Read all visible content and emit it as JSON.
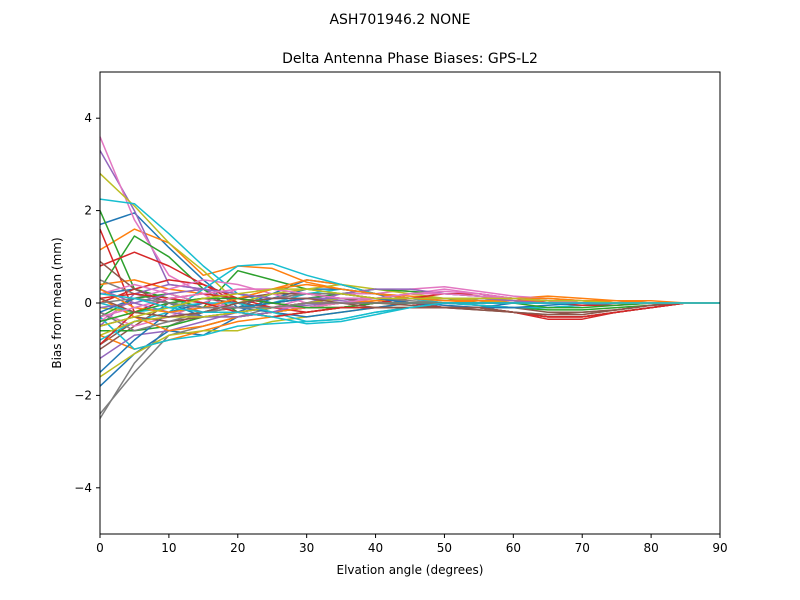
{
  "chart_data": {
    "type": "line",
    "suptitle": "ASH701946.2      NONE",
    "title": "Delta Antenna Phase Biases: GPS-L2",
    "xlabel": "Elvation angle (degrees)",
    "ylabel": "Bias from mean (mm)",
    "xlim": [
      0,
      90
    ],
    "ylim": [
      -5,
      5
    ],
    "xticks": [
      "0",
      "10",
      "20",
      "30",
      "40",
      "50",
      "60",
      "70",
      "80",
      "90"
    ],
    "yticks": [
      "−4",
      "−2",
      "0",
      "2",
      "4"
    ],
    "grid": false,
    "legend": "none",
    "x": [
      0,
      5,
      10,
      15,
      20,
      25,
      30,
      35,
      40,
      45,
      50,
      55,
      60,
      65,
      70,
      75,
      80,
      85,
      90
    ],
    "series": [
      {
        "color": "#1f77b4",
        "values": [
          1.7,
          1.95,
          1.2,
          0.5,
          -0.1,
          0.2,
          0.5,
          0.4,
          0.2,
          0.0,
          -0.1,
          -0.1,
          0.0,
          0.05,
          0.05,
          0.05,
          0.0,
          0.0,
          0.0
        ]
      },
      {
        "color": "#ff7f0e",
        "values": [
          1.15,
          1.6,
          1.3,
          0.6,
          0.8,
          0.75,
          0.45,
          0.3,
          0.2,
          0.15,
          0.1,
          0.1,
          0.1,
          0.15,
          0.1,
          0.05,
          0.05,
          0.0,
          0.0
        ]
      },
      {
        "color": "#2ca02c",
        "values": [
          2.0,
          0.3,
          0.1,
          -0.1,
          0.7,
          0.5,
          0.3,
          0.2,
          0.1,
          0.1,
          0.1,
          0.0,
          0.0,
          0.0,
          0.0,
          0.0,
          0.0,
          0.0,
          0.0
        ]
      },
      {
        "color": "#d62728",
        "values": [
          1.6,
          -0.2,
          -0.3,
          -0.2,
          0.0,
          0.1,
          0.2,
          0.2,
          0.1,
          0.0,
          -0.1,
          -0.1,
          -0.2,
          -0.35,
          -0.35,
          -0.2,
          -0.1,
          0.0,
          0.0
        ]
      },
      {
        "color": "#9467bd",
        "values": [
          3.3,
          2.0,
          0.4,
          0.3,
          0.0,
          -0.2,
          0.0,
          0.1,
          0.1,
          0.1,
          0.1,
          0.1,
          0.05,
          0.0,
          0.0,
          0.0,
          0.0,
          0.0,
          0.0
        ]
      },
      {
        "color": "#8c564b",
        "values": [
          -0.9,
          -0.4,
          -0.3,
          -0.2,
          -0.1,
          0.0,
          0.1,
          0.1,
          0.0,
          0.0,
          -0.1,
          -0.1,
          -0.2,
          -0.3,
          -0.3,
          -0.2,
          -0.1,
          0.0,
          0.0
        ]
      },
      {
        "color": "#e377c2",
        "values": [
          3.6,
          1.8,
          0.6,
          0.2,
          -0.2,
          -0.1,
          0.1,
          0.2,
          0.2,
          0.3,
          0.35,
          0.25,
          0.15,
          0.1,
          0.05,
          0.0,
          0.0,
          0.0,
          0.0
        ]
      },
      {
        "color": "#7f7f7f",
        "values": [
          -2.5,
          -1.3,
          -0.5,
          -0.2,
          -0.1,
          0.0,
          0.1,
          0.1,
          0.1,
          0.1,
          0.1,
          0.05,
          0.0,
          0.0,
          0.0,
          0.0,
          0.0,
          0.0,
          0.0
        ]
      },
      {
        "color": "#bcbd22",
        "values": [
          2.8,
          2.1,
          1.3,
          0.7,
          0.0,
          -0.2,
          -0.1,
          0.0,
          0.05,
          0.1,
          0.1,
          0.1,
          0.1,
          0.1,
          0.05,
          0.0,
          0.0,
          0.0,
          0.0
        ]
      },
      {
        "color": "#17becf",
        "values": [
          2.25,
          2.15,
          1.5,
          0.8,
          0.2,
          0.0,
          0.2,
          0.3,
          0.2,
          0.1,
          0.1,
          0.05,
          0.05,
          0.0,
          0.0,
          0.0,
          0.0,
          0.0,
          0.0
        ]
      },
      {
        "color": "#1f77b4",
        "values": [
          -1.8,
          -1.1,
          -0.6,
          -0.7,
          -0.3,
          -0.2,
          -0.1,
          0.0,
          0.0,
          0.0,
          0.0,
          0.0,
          0.0,
          0.0,
          0.0,
          0.0,
          0.0,
          0.0,
          0.0
        ]
      },
      {
        "color": "#ff7f0e",
        "values": [
          -0.7,
          -1.0,
          -0.8,
          -0.6,
          -0.4,
          -0.3,
          -0.2,
          -0.1,
          0.0,
          0.0,
          0.0,
          0.05,
          0.05,
          0.05,
          0.0,
          0.0,
          0.0,
          0.0,
          0.0
        ]
      },
      {
        "color": "#2ca02c",
        "values": [
          0.3,
          1.45,
          1.0,
          0.3,
          -0.2,
          -0.3,
          -0.2,
          -0.1,
          0.0,
          0.1,
          0.1,
          0.1,
          0.05,
          0.0,
          0.0,
          0.0,
          0.0,
          0.0,
          0.0
        ]
      },
      {
        "color": "#d62728",
        "values": [
          0.8,
          1.1,
          0.8,
          0.4,
          0.0,
          -0.1,
          0.0,
          0.1,
          0.1,
          0.0,
          -0.1,
          -0.1,
          -0.2,
          -0.3,
          -0.3,
          -0.2,
          -0.1,
          0.0,
          0.0
        ]
      },
      {
        "color": "#9467bd",
        "values": [
          -0.5,
          0.2,
          0.4,
          0.3,
          0.2,
          0.1,
          0.1,
          0.05,
          0.0,
          0.0,
          0.0,
          0.0,
          0.0,
          0.0,
          0.0,
          0.0,
          0.0,
          0.0,
          0.0
        ]
      },
      {
        "color": "#8c564b",
        "values": [
          -1.0,
          -0.5,
          0.0,
          0.1,
          0.0,
          -0.1,
          -0.1,
          -0.1,
          -0.1,
          -0.1,
          -0.1,
          -0.15,
          -0.2,
          -0.25,
          -0.25,
          -0.15,
          -0.05,
          0.0,
          0.0
        ]
      },
      {
        "color": "#e377c2",
        "values": [
          -0.2,
          -0.5,
          -0.3,
          0.0,
          0.3,
          0.3,
          0.2,
          0.1,
          0.1,
          0.2,
          0.2,
          0.15,
          0.1,
          0.0,
          0.0,
          0.0,
          0.0,
          0.0,
          0.0
        ]
      },
      {
        "color": "#7f7f7f",
        "values": [
          -2.4,
          -1.5,
          -0.7,
          -0.5,
          -0.3,
          -0.1,
          0.0,
          0.0,
          0.0,
          0.0,
          0.0,
          0.0,
          0.0,
          0.0,
          0.0,
          0.0,
          0.0,
          0.0,
          0.0
        ]
      },
      {
        "color": "#bcbd22",
        "values": [
          -1.6,
          -1.1,
          -0.7,
          -0.6,
          -0.6,
          -0.4,
          -0.3,
          -0.2,
          -0.1,
          0.0,
          0.0,
          0.0,
          0.0,
          0.0,
          0.0,
          0.0,
          0.0,
          0.0,
          0.0
        ]
      },
      {
        "color": "#17becf",
        "values": [
          -0.3,
          -1.0,
          -0.8,
          -0.7,
          -0.5,
          -0.45,
          -0.4,
          -0.35,
          -0.2,
          -0.1,
          0.0,
          0.0,
          0.0,
          0.0,
          0.0,
          0.0,
          0.0,
          0.0,
          0.0
        ]
      },
      {
        "color": "#1f77b4",
        "values": [
          0.2,
          0.3,
          0.0,
          -0.3,
          -0.2,
          0.1,
          0.3,
          0.3,
          0.2,
          0.1,
          0.0,
          -0.05,
          -0.1,
          -0.1,
          -0.05,
          0.0,
          0.0,
          0.0,
          0.0
        ]
      },
      {
        "color": "#ff7f0e",
        "values": [
          0.4,
          0.5,
          0.3,
          0.2,
          0.1,
          0.3,
          0.5,
          0.4,
          0.2,
          0.1,
          0.1,
          0.1,
          0.1,
          0.05,
          0.05,
          0.0,
          0.0,
          0.0,
          0.0
        ]
      },
      {
        "color": "#2ca02c",
        "values": [
          -0.6,
          -0.6,
          -0.5,
          -0.3,
          -0.3,
          -0.2,
          -0.1,
          -0.1,
          -0.1,
          -0.1,
          -0.1,
          -0.1,
          -0.1,
          -0.15,
          -0.15,
          -0.1,
          -0.05,
          0.0,
          0.0
        ]
      },
      {
        "color": "#d62728",
        "values": [
          0.0,
          0.3,
          0.5,
          0.4,
          0.1,
          -0.1,
          -0.2,
          -0.1,
          0.0,
          0.1,
          0.1,
          0.05,
          0.0,
          0.0,
          0.0,
          0.0,
          0.0,
          0.0,
          0.0
        ]
      },
      {
        "color": "#9467bd",
        "values": [
          -1.2,
          -0.7,
          -0.6,
          -0.4,
          -0.2,
          -0.1,
          -0.05,
          0.0,
          0.0,
          0.0,
          0.0,
          0.0,
          0.0,
          0.0,
          0.0,
          0.0,
          0.0,
          0.0,
          0.0
        ]
      },
      {
        "color": "#8c564b",
        "values": [
          0.9,
          0.3,
          0.0,
          -0.1,
          0.1,
          0.2,
          0.2,
          0.1,
          0.0,
          0.0,
          0.0,
          -0.05,
          -0.1,
          -0.2,
          -0.2,
          -0.15,
          -0.05,
          0.0,
          0.0
        ]
      },
      {
        "color": "#e377c2",
        "values": [
          -0.4,
          0.1,
          0.3,
          0.5,
          0.4,
          0.2,
          0.0,
          0.0,
          0.1,
          0.2,
          0.3,
          0.2,
          0.1,
          0.05,
          0.0,
          0.0,
          0.0,
          0.0,
          0.0
        ]
      },
      {
        "color": "#7f7f7f",
        "values": [
          0.5,
          0.2,
          0.0,
          -0.2,
          -0.2,
          -0.1,
          0.0,
          0.1,
          0.1,
          0.1,
          0.1,
          0.05,
          0.0,
          0.0,
          0.0,
          0.0,
          0.0,
          0.0,
          0.0
        ]
      },
      {
        "color": "#bcbd22",
        "values": [
          -0.1,
          -0.2,
          -0.3,
          -0.2,
          0.0,
          0.2,
          0.3,
          0.4,
          0.3,
          0.2,
          0.1,
          0.05,
          0.0,
          0.0,
          0.0,
          0.0,
          0.0,
          0.0,
          0.0
        ]
      },
      {
        "color": "#17becf",
        "values": [
          -0.8,
          -0.4,
          -0.2,
          0.3,
          0.8,
          0.85,
          0.6,
          0.4,
          0.2,
          0.1,
          0.0,
          -0.05,
          -0.1,
          -0.1,
          -0.05,
          0.0,
          0.0,
          0.0,
          0.0
        ]
      },
      {
        "color": "#1f77b4",
        "values": [
          -1.5,
          -0.8,
          -0.2,
          0.0,
          -0.1,
          -0.2,
          -0.3,
          -0.2,
          -0.1,
          0.0,
          0.0,
          0.0,
          0.0,
          0.0,
          0.0,
          0.0,
          0.0,
          0.0,
          0.0
        ]
      },
      {
        "color": "#ff7f0e",
        "values": [
          0.1,
          -0.3,
          -0.6,
          -0.5,
          -0.3,
          -0.2,
          -0.1,
          0.0,
          0.05,
          0.1,
          0.1,
          0.1,
          0.1,
          0.1,
          0.05,
          0.05,
          0.0,
          0.0,
          0.0
        ]
      },
      {
        "color": "#2ca02c",
        "values": [
          -0.3,
          0.1,
          0.2,
          0.0,
          -0.1,
          0.0,
          0.1,
          0.2,
          0.3,
          0.25,
          0.2,
          0.15,
          0.1,
          0.05,
          0.0,
          0.0,
          0.0,
          0.0,
          0.0
        ]
      },
      {
        "color": "#d62728",
        "values": [
          -0.9,
          -0.2,
          0.1,
          0.2,
          0.1,
          0.0,
          -0.1,
          -0.1,
          0.0,
          0.1,
          0.2,
          0.2,
          0.1,
          0.0,
          -0.05,
          -0.05,
          0.0,
          0.0,
          0.0
        ]
      },
      {
        "color": "#9467bd",
        "values": [
          0.3,
          0.0,
          -0.2,
          -0.3,
          -0.3,
          -0.2,
          0.0,
          0.2,
          0.3,
          0.3,
          0.2,
          0.15,
          0.1,
          0.05,
          0.0,
          0.0,
          0.0,
          0.0,
          0.0
        ]
      },
      {
        "color": "#8c564b",
        "values": [
          -0.5,
          -0.3,
          -0.4,
          -0.3,
          -0.2,
          -0.1,
          0.0,
          0.0,
          0.0,
          -0.05,
          -0.1,
          -0.15,
          -0.2,
          -0.3,
          -0.3,
          -0.2,
          -0.1,
          0.0,
          0.0
        ]
      },
      {
        "color": "#e377c2",
        "values": [
          0.2,
          0.4,
          0.2,
          0.0,
          -0.1,
          -0.1,
          -0.1,
          0.0,
          0.1,
          0.2,
          0.2,
          0.15,
          0.1,
          0.05,
          0.0,
          0.0,
          0.0,
          0.0,
          0.0
        ]
      },
      {
        "color": "#7f7f7f",
        "values": [
          -0.2,
          -0.6,
          -0.4,
          -0.2,
          0.0,
          0.1,
          0.2,
          0.2,
          0.1,
          0.05,
          0.0,
          0.0,
          0.0,
          0.0,
          0.0,
          0.0,
          0.0,
          0.0,
          0.0
        ]
      },
      {
        "color": "#bcbd22",
        "values": [
          -0.7,
          -0.4,
          -0.3,
          -0.3,
          -0.2,
          -0.1,
          0.0,
          0.1,
          0.1,
          0.1,
          0.1,
          0.1,
          0.05,
          0.0,
          0.0,
          0.0,
          0.0,
          0.0,
          0.0
        ]
      },
      {
        "color": "#17becf",
        "values": [
          0.0,
          -0.2,
          -0.1,
          0.0,
          0.0,
          -0.2,
          -0.4,
          -0.35,
          -0.2,
          -0.1,
          0.0,
          0.0,
          0.0,
          0.0,
          0.0,
          0.0,
          0.0,
          0.0,
          0.0
        ]
      },
      {
        "color": "#1f77b4",
        "values": [
          -0.2,
          0.1,
          0.0,
          -0.1,
          -0.1,
          0.0,
          0.1,
          0.1,
          0.1,
          0.0,
          -0.05,
          -0.1,
          -0.1,
          -0.05,
          0.0,
          0.0,
          0.0,
          0.0,
          0.0
        ]
      },
      {
        "color": "#ff7f0e",
        "values": [
          0.3,
          -0.1,
          -0.2,
          -0.1,
          0.1,
          0.3,
          0.4,
          0.3,
          0.2,
          0.1,
          0.05,
          0.05,
          0.05,
          0.05,
          0.05,
          0.0,
          0.0,
          0.0,
          0.0
        ]
      },
      {
        "color": "#2ca02c",
        "values": [
          -0.4,
          -0.2,
          0.0,
          0.1,
          0.1,
          0.0,
          -0.1,
          -0.1,
          0.0,
          0.0,
          0.0,
          0.0,
          0.0,
          -0.1,
          -0.1,
          -0.05,
          0.0,
          0.0,
          0.0
        ]
      },
      {
        "color": "#d62728",
        "values": [
          0.1,
          0.2,
          0.1,
          0.0,
          -0.2,
          -0.3,
          -0.2,
          -0.1,
          -0.1,
          -0.1,
          -0.1,
          -0.1,
          -0.2,
          -0.3,
          -0.3,
          -0.2,
          -0.1,
          0.0,
          0.0
        ]
      },
      {
        "color": "#9467bd",
        "values": [
          -0.1,
          0.0,
          0.2,
          0.3,
          0.2,
          0.1,
          0.1,
          0.1,
          0.1,
          0.1,
          0.1,
          0.1,
          0.05,
          0.0,
          0.0,
          0.0,
          0.0,
          0.0,
          0.0
        ]
      },
      {
        "color": "#8c564b",
        "values": [
          0.1,
          -0.2,
          -0.3,
          -0.2,
          0.0,
          0.1,
          0.1,
          0.0,
          -0.1,
          -0.1,
          -0.1,
          -0.1,
          -0.2,
          -0.25,
          -0.2,
          -0.15,
          -0.05,
          0.0,
          0.0
        ]
      },
      {
        "color": "#e377c2",
        "values": [
          -0.3,
          -0.1,
          0.1,
          0.2,
          0.3,
          0.3,
          0.2,
          0.1,
          0.1,
          0.2,
          0.25,
          0.2,
          0.1,
          0.05,
          0.0,
          0.0,
          0.0,
          0.0,
          0.0
        ]
      },
      {
        "color": "#7f7f7f",
        "values": [
          0.0,
          0.1,
          0.0,
          -0.1,
          -0.1,
          -0.1,
          0.0,
          0.0,
          0.0,
          0.0,
          0.0,
          0.0,
          0.0,
          0.0,
          0.0,
          0.0,
          0.0,
          0.0,
          0.0
        ]
      },
      {
        "color": "#bcbd22",
        "values": [
          -0.5,
          -0.3,
          -0.1,
          0.1,
          0.2,
          0.3,
          0.3,
          0.2,
          0.1,
          0.1,
          0.1,
          0.1,
          0.1,
          0.05,
          0.05,
          0.0,
          0.0,
          0.0,
          0.0
        ]
      },
      {
        "color": "#17becf",
        "values": [
          0.2,
          0.1,
          -0.1,
          -0.2,
          -0.2,
          -0.3,
          -0.45,
          -0.4,
          -0.25,
          -0.1,
          0.0,
          0.0,
          0.0,
          0.0,
          0.0,
          0.0,
          0.0,
          0.0,
          0.0
        ]
      }
    ]
  }
}
